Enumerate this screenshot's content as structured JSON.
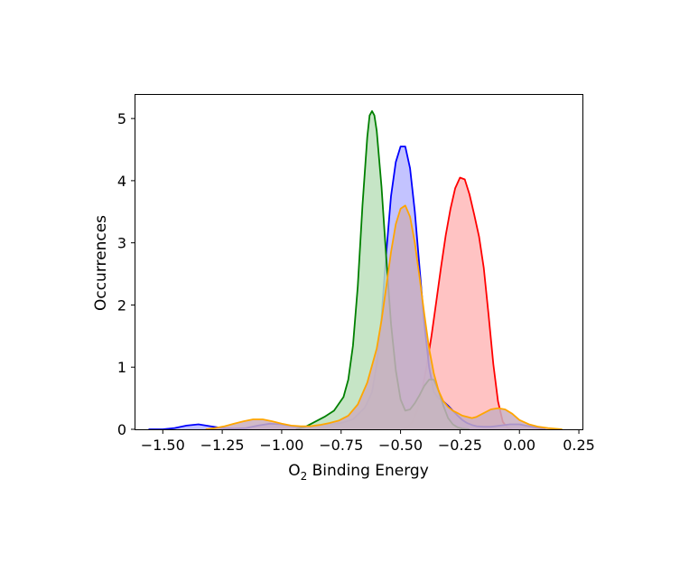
{
  "chart_data": {
    "type": "area",
    "xlabel_main": "O",
    "xlabel_sub": "2",
    "xlabel_rest": " Binding Energy",
    "ylabel": "Occurrences",
    "xlim": [
      -1.615,
      0.265
    ],
    "ylim": [
      0,
      5.38
    ],
    "x_ticks": [
      -1.5,
      -1.25,
      -1.0,
      -0.75,
      -0.5,
      -0.25,
      0.0,
      0.25
    ],
    "x_tick_labels": [
      "−1.50",
      "−1.25",
      "−1.00",
      "−0.75",
      "−0.50",
      "−0.25",
      "0.00",
      "0.25"
    ],
    "y_ticks": [
      0,
      1,
      2,
      3,
      4,
      5
    ],
    "y_tick_labels": [
      "0",
      "1",
      "2",
      "3",
      "4",
      "5"
    ],
    "grid": false,
    "series": [
      {
        "color": "#ff0000",
        "fill": "#ffb9b9",
        "x": [
          -0.49,
          -0.47,
          -0.45,
          -0.43,
          -0.41,
          -0.39,
          -0.37,
          -0.35,
          -0.33,
          -0.31,
          -0.29,
          -0.27,
          -0.25,
          -0.23,
          -0.21,
          -0.19,
          -0.17,
          -0.15,
          -0.13,
          -0.11,
          -0.09,
          -0.07,
          -0.05,
          -0.03
        ],
        "y": [
          0.0,
          0.04,
          0.12,
          0.3,
          0.62,
          1.02,
          1.5,
          2.05,
          2.6,
          3.12,
          3.55,
          3.88,
          4.05,
          4.02,
          3.78,
          3.45,
          3.1,
          2.6,
          1.85,
          1.05,
          0.45,
          0.12,
          0.02,
          0.0
        ]
      },
      {
        "color": "#0000ff",
        "fill": "#b9b9ff",
        "x": [
          -1.56,
          -1.5,
          -1.45,
          -1.4,
          -1.35,
          -1.3,
          -1.25,
          -1.2,
          -1.15,
          -1.1,
          -1.05,
          -1.0,
          -0.95,
          -0.9,
          -0.85,
          -0.8,
          -0.75,
          -0.7,
          -0.65,
          -0.62,
          -0.6,
          -0.58,
          -0.56,
          -0.54,
          -0.52,
          -0.5,
          -0.48,
          -0.46,
          -0.44,
          -0.42,
          -0.4,
          -0.38,
          -0.36,
          -0.34,
          -0.32,
          -0.3,
          -0.28,
          -0.26,
          -0.24,
          -0.22,
          -0.2,
          -0.18,
          -0.15,
          -0.12,
          -0.08,
          -0.04,
          0.0,
          0.04,
          0.08,
          0.11
        ],
        "y": [
          0.0,
          0.0,
          0.02,
          0.06,
          0.08,
          0.05,
          0.02,
          0.01,
          0.02,
          0.06,
          0.09,
          0.08,
          0.05,
          0.04,
          0.06,
          0.08,
          0.1,
          0.16,
          0.35,
          0.6,
          1.05,
          1.8,
          2.85,
          3.75,
          4.3,
          4.55,
          4.55,
          4.2,
          3.5,
          2.6,
          1.7,
          1.0,
          0.6,
          0.5,
          0.45,
          0.38,
          0.3,
          0.22,
          0.15,
          0.1,
          0.07,
          0.05,
          0.04,
          0.04,
          0.06,
          0.08,
          0.08,
          0.05,
          0.02,
          0.0
        ]
      },
      {
        "color": "#008000",
        "fill": "#bce0bc",
        "x": [
          -0.94,
          -0.9,
          -0.86,
          -0.82,
          -0.78,
          -0.74,
          -0.72,
          -0.7,
          -0.68,
          -0.66,
          -0.64,
          -0.63,
          -0.62,
          -0.61,
          -0.6,
          -0.58,
          -0.56,
          -0.54,
          -0.52,
          -0.5,
          -0.48,
          -0.46,
          -0.44,
          -0.42,
          -0.4,
          -0.38,
          -0.36,
          -0.34,
          -0.32,
          -0.3,
          -0.28,
          -0.26,
          -0.24,
          -0.21
        ],
        "y": [
          0.0,
          0.04,
          0.12,
          0.2,
          0.3,
          0.52,
          0.8,
          1.35,
          2.3,
          3.6,
          4.7,
          5.05,
          5.12,
          5.05,
          4.8,
          3.9,
          2.75,
          1.7,
          0.95,
          0.48,
          0.3,
          0.32,
          0.42,
          0.55,
          0.7,
          0.8,
          0.8,
          0.62,
          0.38,
          0.18,
          0.08,
          0.03,
          0.01,
          0.0
        ]
      },
      {
        "color": "#ffa500",
        "fill": "#c9aec0",
        "x": [
          -1.32,
          -1.28,
          -1.24,
          -1.2,
          -1.16,
          -1.12,
          -1.08,
          -1.04,
          -1.0,
          -0.96,
          -0.92,
          -0.88,
          -0.84,
          -0.8,
          -0.76,
          -0.72,
          -0.68,
          -0.64,
          -0.6,
          -0.58,
          -0.56,
          -0.54,
          -0.52,
          -0.5,
          -0.48,
          -0.46,
          -0.44,
          -0.42,
          -0.4,
          -0.38,
          -0.36,
          -0.34,
          -0.32,
          -0.3,
          -0.28,
          -0.26,
          -0.24,
          -0.22,
          -0.2,
          -0.18,
          -0.15,
          -0.12,
          -0.09,
          -0.06,
          -0.03,
          0.0,
          0.04,
          0.08,
          0.12,
          0.18
        ],
        "y": [
          0.0,
          0.02,
          0.05,
          0.09,
          0.13,
          0.16,
          0.16,
          0.13,
          0.09,
          0.06,
          0.05,
          0.05,
          0.07,
          0.1,
          0.14,
          0.22,
          0.4,
          0.75,
          1.3,
          1.75,
          2.3,
          2.85,
          3.3,
          3.55,
          3.6,
          3.42,
          3.0,
          2.45,
          1.85,
          1.3,
          0.9,
          0.62,
          0.45,
          0.36,
          0.3,
          0.26,
          0.22,
          0.2,
          0.18,
          0.2,
          0.26,
          0.32,
          0.34,
          0.32,
          0.25,
          0.15,
          0.08,
          0.04,
          0.02,
          0.0
        ]
      }
    ]
  }
}
